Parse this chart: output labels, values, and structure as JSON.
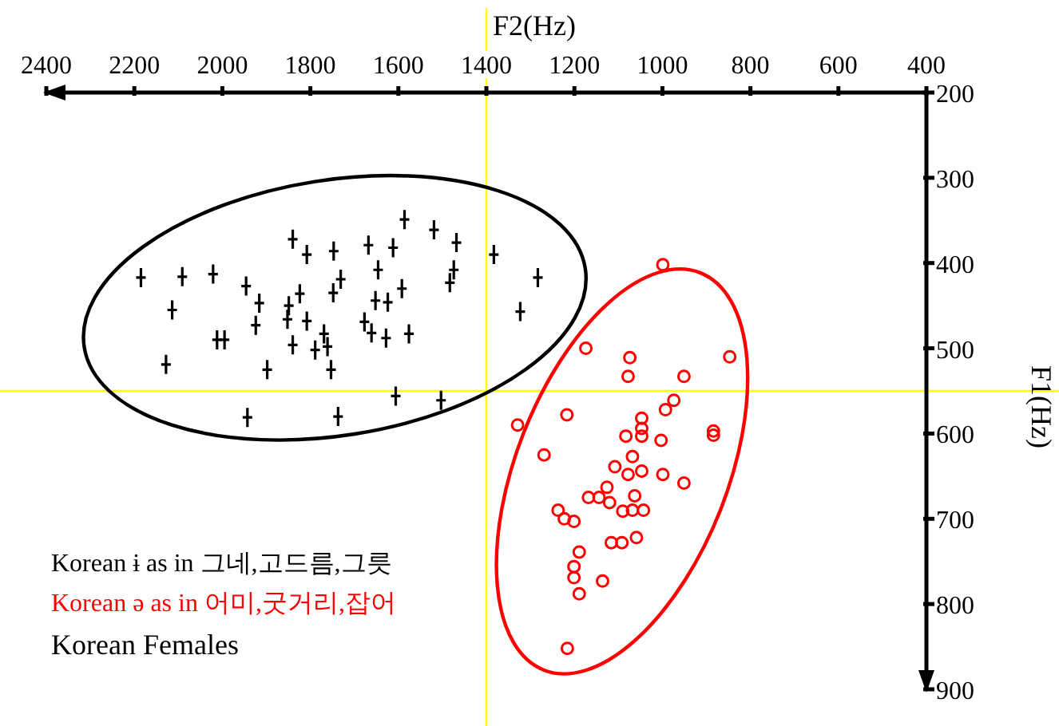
{
  "chart_data": {
    "type": "scatter",
    "xlabel": "F2(Hz)",
    "ylabel": "F1(Hz)",
    "legend_title": "Korean Females",
    "legend": "bottom left",
    "grid": false,
    "xlim": [
      2400,
      400
    ],
    "ylim": [
      900,
      200
    ],
    "xticks": [
      2400,
      2200,
      2000,
      1800,
      1600,
      1400,
      1200,
      1000,
      800,
      600,
      400
    ],
    "yticks": [
      200,
      300,
      400,
      500,
      600,
      700,
      800,
      900
    ],
    "ref_lines": [
      {
        "axis": "x",
        "value": 1400,
        "color": "#ffff00"
      },
      {
        "axis": "y",
        "value": 550,
        "color": "#ffff00"
      }
    ],
    "series": [
      {
        "name": "Korean ɨ as in 그네,고드름,그릇",
        "color": "#000000",
        "marker": "cross",
        "x": [
          1586,
          1519,
          1468,
          1474,
          1483,
          1383,
          1283,
          1323,
          1840,
          1808,
          1747,
          1668,
          1612,
          1646,
          1731,
          1748,
          1592,
          1652,
          1624,
          2185,
          2091,
          2021,
          1946,
          1916,
          1824,
          2114,
          1849,
          1852,
          1924,
          1808,
          2012,
          1995,
          1840,
          1769,
          1761,
          1789,
          1677,
          1661,
          1628,
          1576,
          2128,
          1898,
          1753,
          1606,
          1503,
          1943,
          1737
        ],
        "values": [
          349,
          361,
          376,
          408,
          423,
          390,
          417,
          457,
          372,
          390,
          386,
          379,
          382,
          408,
          419,
          435,
          430,
          444,
          446,
          417,
          416,
          413,
          427,
          447,
          436,
          455,
          450,
          466,
          473,
          468,
          490,
          490,
          496,
          483,
          498,
          502,
          469,
          482,
          488,
          483,
          519,
          525,
          525,
          556,
          561,
          581,
          580
        ]
      },
      {
        "name": "Korean ə as in 어미,굿거리,잡어",
        "color": "#ff0000",
        "marker": "circle",
        "x": [
          999,
          1174,
          1074,
          1078,
          951,
          847,
          1329,
          1217,
          974,
          993,
          1047,
          884,
          1047,
          1083,
          1047,
          1003,
          884,
          1269,
          1068,
          1108,
          1047,
          1078,
          999,
          951,
          1126,
          1168,
          1144,
          1120,
          1063,
          1090,
          1068,
          1043,
          1237,
          1223,
          1201,
          1116,
          1092,
          1059,
          1189,
          1201,
          1136,
          1201,
          1189,
          1216
        ],
        "values": [
          402,
          500,
          511,
          533,
          533,
          510,
          590,
          578,
          561,
          572,
          582,
          597,
          594,
          603,
          603,
          608,
          602,
          625,
          627,
          639,
          644,
          648,
          648,
          658,
          663,
          675,
          675,
          681,
          673,
          691,
          690,
          690,
          690,
          700,
          703,
          728,
          728,
          722,
          739,
          756,
          773,
          769,
          788,
          852
        ]
      }
    ]
  }
}
